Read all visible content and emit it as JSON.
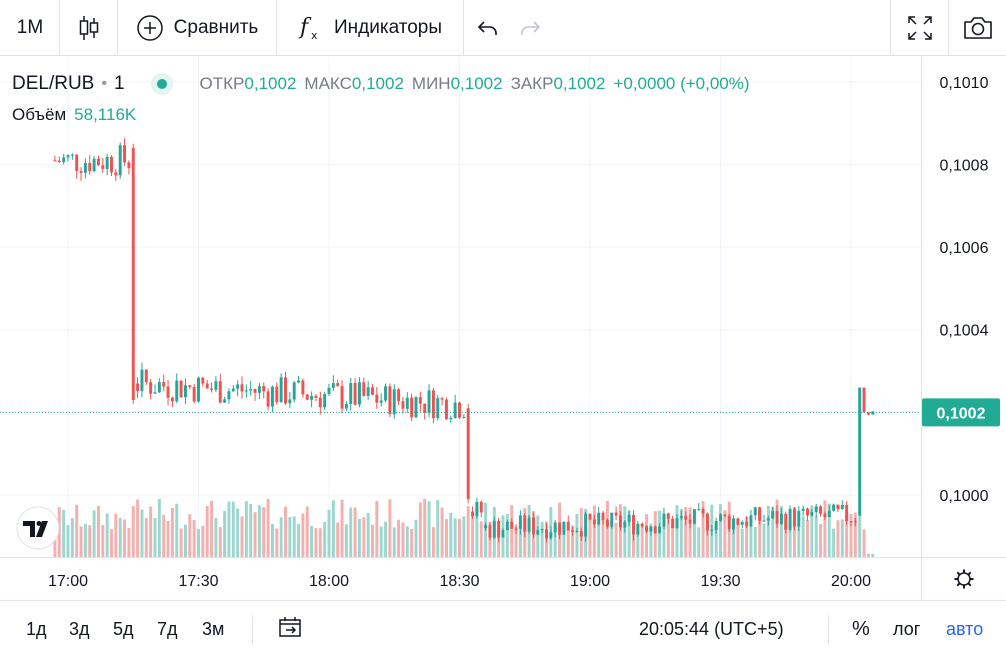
{
  "toolbar": {
    "interval": "1M",
    "compare_label": "Сравнить",
    "indicators_label": "Индикаторы",
    "icons": [
      "candles-icon",
      "plus-circle-icon",
      "fx-icon",
      "undo-icon",
      "redo-icon",
      "fullscreen-icon",
      "camera-icon"
    ]
  },
  "legend": {
    "symbol": "DEL/RUB",
    "interval": "1",
    "open_label": "ОТКР",
    "open_value": "0,1002",
    "high_label": "МАКС",
    "high_value": "0,1002",
    "low_label": "МИН",
    "low_value": "0,1002",
    "close_label": "ЗАКР",
    "close_value": "0,1002",
    "change": "+0,0000 (+0,00%)",
    "volume_label": "Объём",
    "volume_value": "58,116K"
  },
  "bottom": {
    "ranges": [
      "1д",
      "3д",
      "5д",
      "7д",
      "3м"
    ],
    "time": "20:05:44 (UTC+5)",
    "percent_label": "%",
    "log_label": "лог",
    "auto_label": "авто"
  },
  "colors": {
    "up": "#26a69a",
    "down": "#ef5350",
    "vol_up": "#9cd6cf",
    "vol_down": "#f3b0ae",
    "grid": "#f0f3fa",
    "price_line": "#22ab94",
    "auto": "#2962ff"
  },
  "chart_data": {
    "type": "candlestick",
    "symbol": "DEL/RUB",
    "interval": "1",
    "x_ticks": [
      "17:00",
      "17:30",
      "18:00",
      "18:30",
      "19:00",
      "19:30",
      "20:00"
    ],
    "y_ticks": [
      "0,1000",
      "0,1002",
      "0,1004",
      "0,1006",
      "0,1008",
      "0,1010"
    ],
    "y_tick_values": [
      0.1,
      0.1002,
      0.1004,
      0.1006,
      0.1008,
      0.101
    ],
    "ylim": [
      0.09985,
      0.10106
    ],
    "current_price": 0.1002,
    "current_price_label": "0,1002",
    "grid": true,
    "segments": [
      {
        "start": "16:57",
        "end": "17:14",
        "level": 0.10081,
        "spread": 4e-05,
        "volume": 50
      },
      {
        "start": "17:15",
        "end": "17:15",
        "open": 0.10084,
        "high": 0.10085,
        "low": 0.10022,
        "close": 0.10023,
        "volume": 55
      },
      {
        "start": "17:16",
        "end": "18:31",
        "level": 0.10027,
        "spread": 4e-05,
        "slope": -5e-05,
        "volume": 55
      },
      {
        "start": "18:32",
        "end": "18:32",
        "open": 0.10021,
        "high": 0.10022,
        "low": 0.09998,
        "close": 0.09999,
        "volume": 55
      },
      {
        "start": "18:33",
        "end": "18:35",
        "level": 0.09996,
        "spread": 3e-05,
        "volume": 55
      },
      {
        "start": "18:36",
        "end": "20:01",
        "level": 0.09992,
        "spread": 3e-05,
        "slope": 3e-05,
        "volume": 55
      },
      {
        "start": "20:02",
        "end": "20:02",
        "open": 0.09995,
        "high": 0.10026,
        "low": 0.09995,
        "close": 0.10026,
        "volume": 50
      },
      {
        "start": "20:03",
        "end": "20:03",
        "open": 0.10026,
        "high": 0.10026,
        "low": 0.1002,
        "close": 0.1002,
        "volume": 30
      },
      {
        "start": "20:04",
        "end": "20:05",
        "level": 0.1002,
        "spread": 1e-05,
        "volume": 5
      }
    ]
  }
}
